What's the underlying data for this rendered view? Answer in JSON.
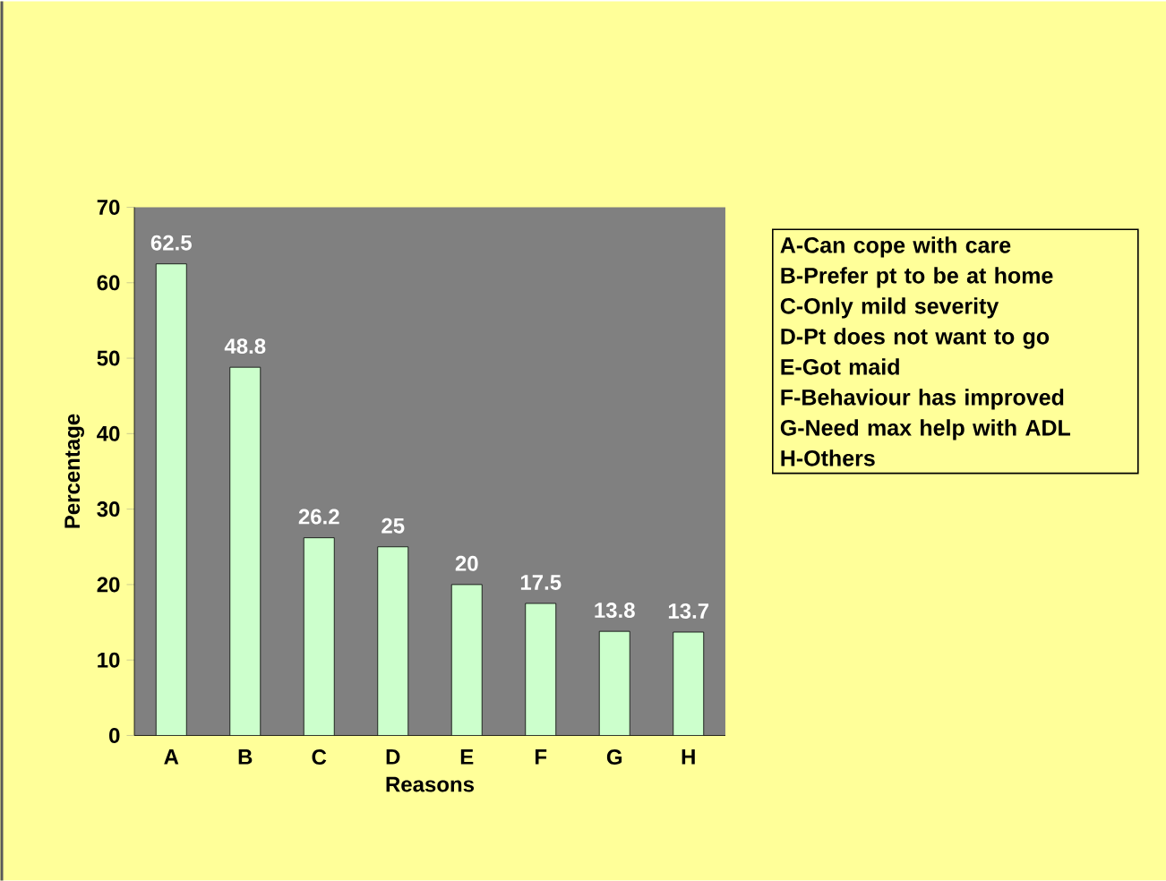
{
  "chart_data": {
    "type": "bar",
    "xlabel": "Reasons",
    "ylabel": "Percentage",
    "categories": [
      "A",
      "B",
      "C",
      "D",
      "E",
      "F",
      "G",
      "H"
    ],
    "values": [
      62.5,
      48.8,
      26.2,
      25,
      20,
      17.5,
      13.8,
      13.7
    ],
    "color": "#ccffcc",
    "ylim": [
      0,
      70
    ],
    "yticks": [
      0,
      10,
      20,
      30,
      40,
      50,
      60,
      70
    ],
    "data_labels": true,
    "annotations": [
      "A-Can cope with care",
      "B-Prefer pt to be at home",
      "C-Only mild severity",
      "D-Pt does not want to go",
      "E-Got maid",
      "F-Behaviour has improved",
      "G-Need max help with ADL",
      "H-Others"
    ]
  }
}
